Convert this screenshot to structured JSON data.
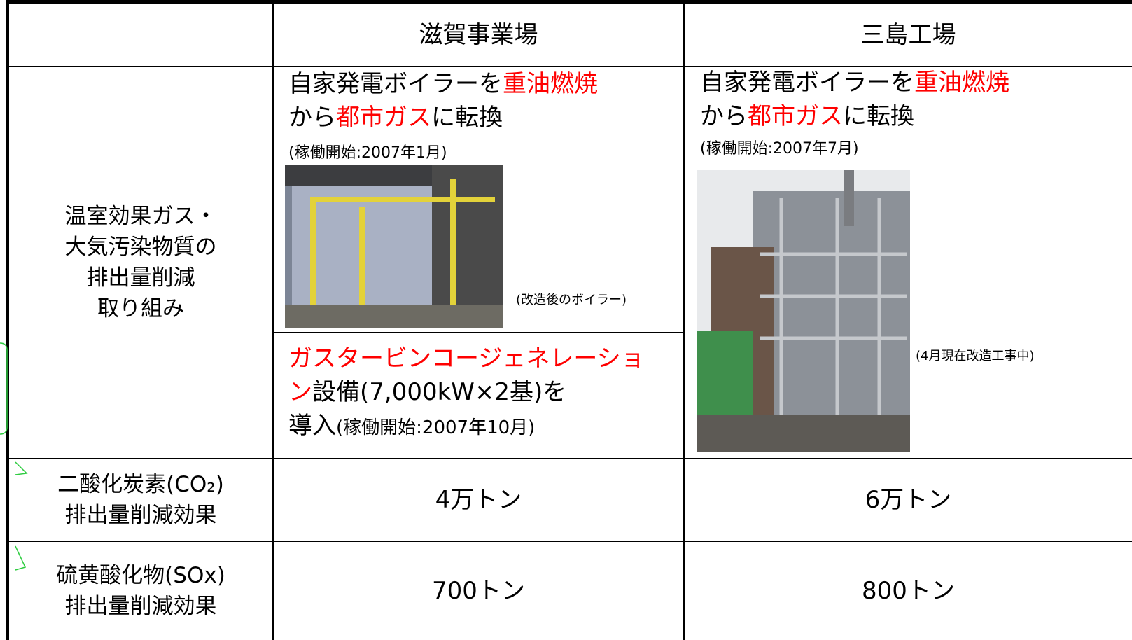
{
  "table": {
    "columns": [
      "滋賀事業場",
      "三島工場"
    ],
    "rows": [
      {
        "label": [
          "温室効果ガス・",
          "大気汚染物質の",
          "排出量削減",
          "取り組み"
        ],
        "cells": [
          {
            "lines": [
              [
                {
                  "text": "自家発電ボイラーを"
                },
                {
                  "text": "重油燃焼",
                  "color": "#ff0000"
                }
              ],
              [
                {
                  "text": "から"
                },
                {
                  "text": "都市ガス",
                  "color": "#ff0000"
                },
                {
                  "text": "に転換"
                }
              ]
            ],
            "note": "(稼働開始:2007年1月)",
            "caption": "(改造後のボイラー)",
            "extra": [
              [
                {
                  "text": "ガスタービンコージェネレーショ",
                  "color": "#ff0000"
                }
              ],
              [
                {
                  "text": "ン",
                  "color": "#ff0000"
                },
                {
                  "text": "設備(7,000kW×2基)を"
                }
              ],
              [
                {
                  "text": "導入"
                },
                {
                  "text": "(稼働開始:2007年10月)",
                  "small": true
                }
              ]
            ]
          },
          {
            "lines": [
              [
                {
                  "text": "自家発電ボイラーを"
                },
                {
                  "text": "重油燃焼",
                  "color": "#ff0000"
                }
              ],
              [
                {
                  "text": "から"
                },
                {
                  "text": "都市ガス",
                  "color": "#ff0000"
                },
                {
                  "text": "に転換"
                }
              ]
            ],
            "note": "(稼働開始:2007年7月)",
            "caption": "(4月現在改造工事中)"
          }
        ]
      },
      {
        "label": [
          "二酸化炭素(CO₂)",
          "排出量削減効果"
        ],
        "cells": [
          "4万トン",
          "6万トン"
        ]
      },
      {
        "label": [
          "硫黄酸化物(SOx)",
          "排出量削減効果"
        ],
        "cells": [
          "700トン",
          "800トン"
        ]
      }
    ]
  }
}
